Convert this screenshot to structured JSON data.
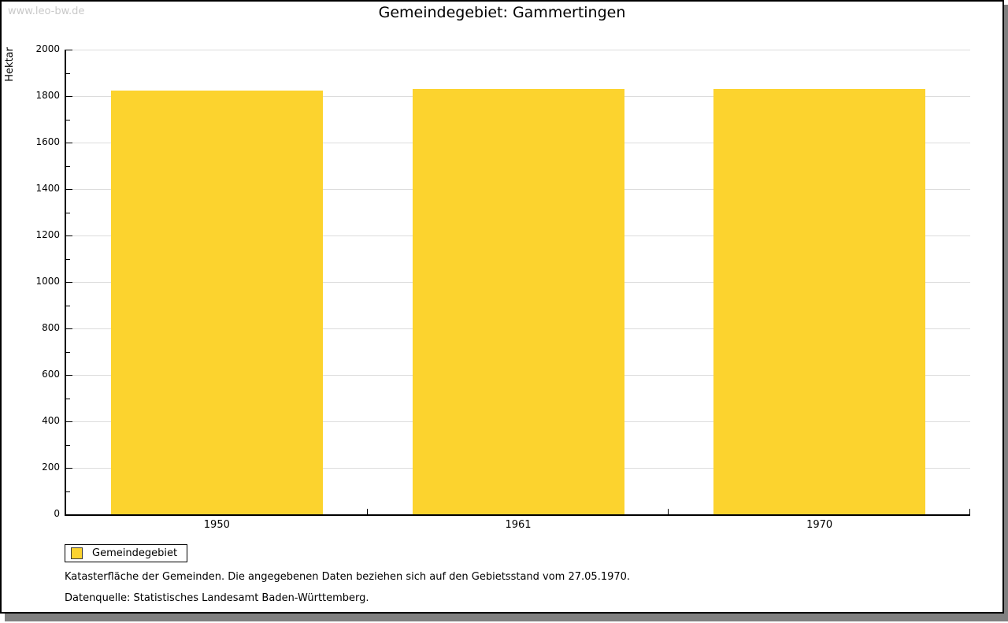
{
  "watermark": "www.leo-bw.de",
  "title": "Gemeindegebiet: Gammertingen",
  "colors": {
    "bar": "#FCD32E",
    "grid": "#DCDCDC",
    "axis": "#000000",
    "shadow": "#808080",
    "watermark": "#C9C9C9"
  },
  "chart_data": {
    "type": "bar",
    "categories": [
      "1950",
      "1961",
      "1970"
    ],
    "series": [
      {
        "name": "Gemeindegebiet",
        "values": [
          1825,
          1830,
          1830
        ]
      }
    ],
    "title": "Gemeindegebiet: Gammertingen",
    "xlabel": "",
    "ylabel": "Hektar",
    "ylim": [
      0,
      2000
    ],
    "ytick_step": 200,
    "minor_tick_step": 100,
    "yticks": [
      0,
      200,
      400,
      600,
      800,
      1000,
      1200,
      1400,
      1600,
      1800,
      2000
    ],
    "grid": "horizontal-major",
    "legend_position": "bottom-left",
    "unit": "Hektar"
  },
  "legend": {
    "items": [
      {
        "label": "Gemeindegebiet",
        "color": "#FCD32E"
      }
    ]
  },
  "footnotes": {
    "line1": "Katasterfläche der Gemeinden. Die angegebenen Daten beziehen sich auf den Gebietsstand vom 27.05.1970.",
    "line2": "Datenquelle: Statistisches Landesamt Baden-Württemberg."
  }
}
